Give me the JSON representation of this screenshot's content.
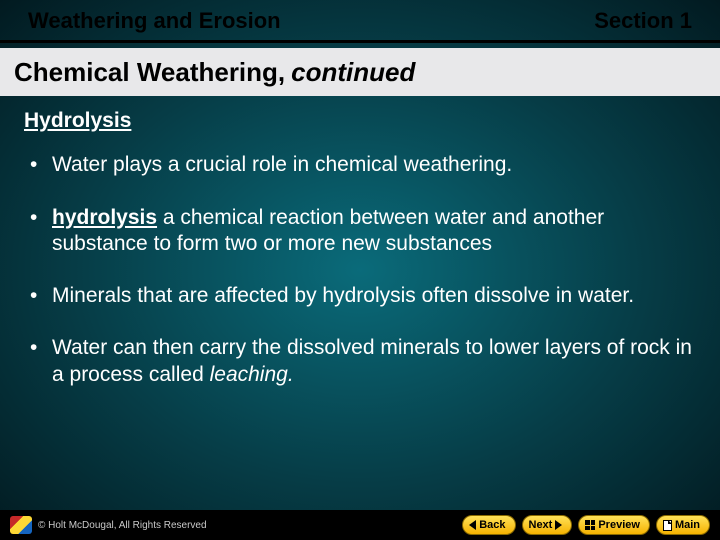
{
  "header": {
    "left": "Weathering and Erosion",
    "right": "Section 1"
  },
  "title": {
    "main": "Chemical Weathering,",
    "italic": "continued"
  },
  "subheading": "Hydrolysis",
  "bullets": [
    {
      "pre": "Water plays a crucial role in chemical weathering."
    },
    {
      "term": "hydrolysis",
      "post": " a chemical reaction between water and another substance to form two or more new substances"
    },
    {
      "pre": "Minerals that are affected by hydrolysis often dissolve in water."
    },
    {
      "pre": "Water can then carry the dissolved minerals to lower layers of rock in a process called ",
      "ital": "leaching."
    }
  ],
  "footer": {
    "copyright": "© Holt McDougal, All Rights Reserved",
    "nav": {
      "back": "Back",
      "next": "Next",
      "preview": "Preview",
      "main": "Main"
    }
  },
  "colors": {
    "bg_center": "#0a6b7a",
    "bg_edge": "#021a20",
    "title_bg": "#e8e8ea",
    "text": "#ffffff",
    "pill_top": "#ffe159",
    "pill_bottom": "#f5b201"
  }
}
